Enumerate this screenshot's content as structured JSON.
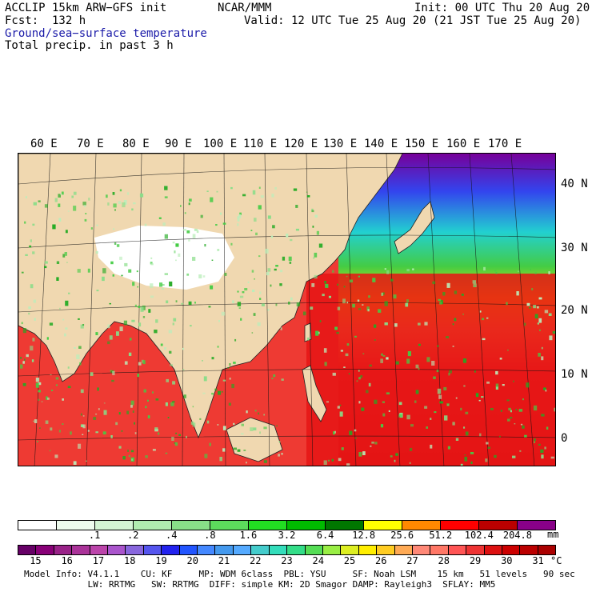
{
  "header": {
    "model": "ACCLIP 15km ARW−GFS init",
    "center": "NCAR/MMM",
    "init": "Init: 00 UTC Thu 20 Aug 20",
    "fcst": "Fcst:  132 h",
    "valid": "Valid: 12 UTC Tue 25 Aug 20 (21 JST Tue 25 Aug 20)",
    "field1": "Ground/sea−surface temperature",
    "field2": "Total precip. in past 3 h"
  },
  "map": {
    "lon_labels": [
      "60 E",
      "70 E",
      "80 E",
      "90 E",
      "100 E",
      "110 E",
      "120 E",
      "130 E",
      "140 E",
      "150 E",
      "160 E",
      "170 E"
    ],
    "lat_labels": [
      "40 N",
      "30 N",
      "20 N",
      "10 N",
      "0"
    ],
    "colors": {
      "land_tan": "#f0d8b0",
      "snow_white": "#ffffff",
      "sea_warm": "#ee2222",
      "sea_red": "#cc0000",
      "sea_orange": "#ff7744",
      "sea_yellow": "#f0e000",
      "sea_green": "#44cc44",
      "sea_cyan": "#22d0d0",
      "sea_blue": "#3344ee",
      "sea_purple": "#770099",
      "rain_green": "#44cc44",
      "rain_light": "#bbeebb"
    }
  },
  "precip_scale": {
    "unit": "mm",
    "ticks": [
      ".1",
      ".2",
      ".4",
      ".8",
      "1.6",
      "3.2",
      "6.4",
      "12.8",
      "25.6",
      "51.2",
      "102.4",
      "204.8"
    ],
    "colors": [
      "#ffffff",
      "#eefbee",
      "#d4f4d4",
      "#b0ecb0",
      "#88e088",
      "#5cdc5c",
      "#22dd22",
      "#00bb00",
      "#007700",
      "#ffff00",
      "#ff8800",
      "#ff0000",
      "#bb0000",
      "#880088"
    ]
  },
  "temp_scale": {
    "unit": "°C",
    "ticks": [
      "15",
      "16",
      "17",
      "18",
      "19",
      "20",
      "21",
      "22",
      "23",
      "24",
      "25",
      "26",
      "27",
      "28",
      "29",
      "30",
      "31"
    ],
    "colors": [
      "#660066",
      "#880077",
      "#992288",
      "#aa3399",
      "#bb44aa",
      "#aa55cc",
      "#8866dd",
      "#5555ee",
      "#2222ee",
      "#2255ff",
      "#4488ff",
      "#4499ee",
      "#55aaff",
      "#44cccc",
      "#33ddbb",
      "#33dd88",
      "#55dd55",
      "#99ee44",
      "#ddee22",
      "#ffee00",
      "#ffcc22",
      "#ffaa55",
      "#ff8877",
      "#ff7766",
      "#ff5555",
      "#ee3333",
      "#dd1111",
      "#cc0000",
      "#bb0000",
      "#aa0000"
    ]
  },
  "footer": {
    "line1": "Model Info: V4.1.1    CU: KF     MP: WDM 6class  PBL: YSU     SF: Noah LSM    15 km   51 levels   90 sec",
    "line2": "            LW: RRTMG   SW: RRTMG  DIFF: simple KM: 2D Smagor DAMP: Rayleigh3  SFLAY: MM5"
  }
}
